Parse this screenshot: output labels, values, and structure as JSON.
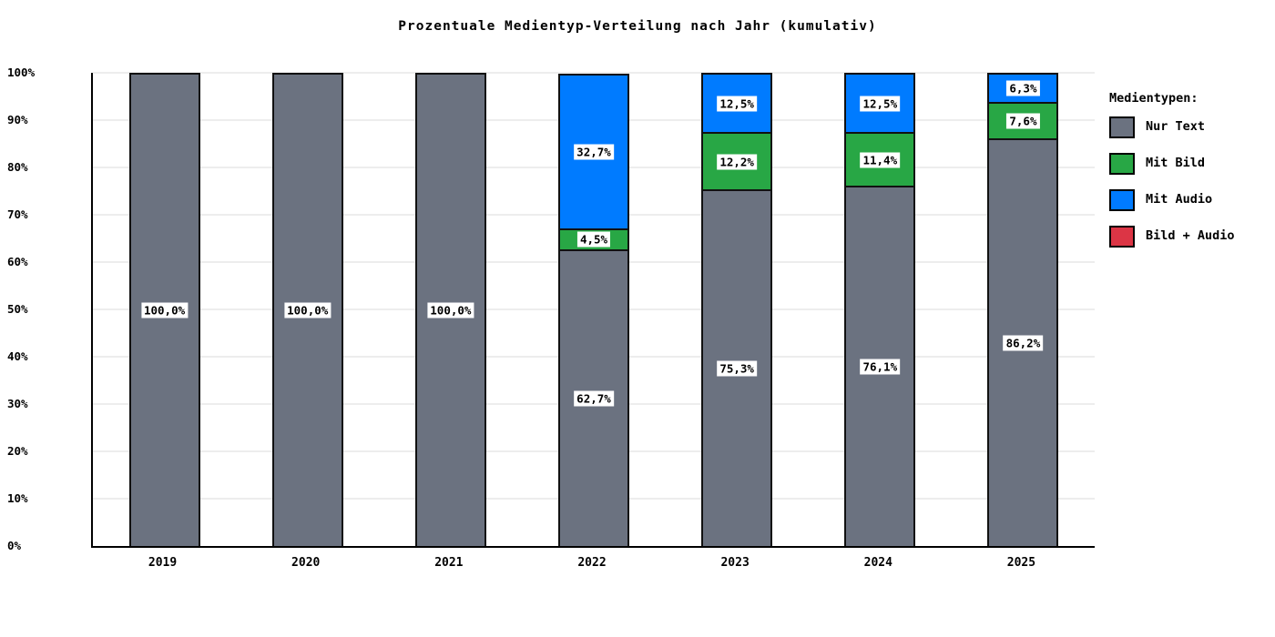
{
  "title": "Prozentuale Medientyp-Verteilung nach Jahr (kumulativ)",
  "chart_data": {
    "type": "bar",
    "stacked": true,
    "title": "Prozentuale Medientyp-Verteilung nach Jahr (kumulativ)",
    "categories": [
      "2019",
      "2020",
      "2021",
      "2022",
      "2023",
      "2024",
      "2025"
    ],
    "series": [
      {
        "name": "Nur Text",
        "color": "#6b7280",
        "values": [
          100.0,
          100.0,
          100.0,
          62.7,
          75.3,
          76.1,
          86.2
        ],
        "labels": [
          "100,0%",
          "100,0%",
          "100,0%",
          "62,7%",
          "75,3%",
          "76,1%",
          "86,2%"
        ]
      },
      {
        "name": "Mit Bild",
        "color": "#28a745",
        "values": [
          0,
          0,
          0,
          4.5,
          12.2,
          11.4,
          7.6
        ],
        "labels": [
          "",
          "",
          "",
          "4,5%",
          "12,2%",
          "11,4%",
          "7,6%"
        ]
      },
      {
        "name": "Mit Audio",
        "color": "#007bff",
        "values": [
          0,
          0,
          0,
          32.7,
          12.5,
          12.5,
          6.3
        ],
        "labels": [
          "",
          "",
          "",
          "32,7%",
          "12,5%",
          "12,5%",
          "6,3%"
        ]
      },
      {
        "name": "Bild + Audio",
        "color": "#dc3545",
        "values": [
          0,
          0,
          0,
          0,
          0,
          0,
          0
        ],
        "labels": [
          "",
          "",
          "",
          "",
          "",
          "",
          ""
        ]
      }
    ],
    "xlabel": "",
    "ylabel": "",
    "ylim": [
      0,
      100
    ],
    "ytick_labels": [
      "0%",
      "10%",
      "20%",
      "30%",
      "40%",
      "50%",
      "60%",
      "70%",
      "80%",
      "90%",
      "100%"
    ],
    "grid": true,
    "legend_position": "right"
  },
  "legend": {
    "title": "Medientypen:",
    "items": [
      {
        "label": "Nur Text",
        "color": "#6b7280"
      },
      {
        "label": "Mit Bild",
        "color": "#28a745"
      },
      {
        "label": "Mit Audio",
        "color": "#007bff"
      },
      {
        "label": "Bild + Audio",
        "color": "#dc3545"
      }
    ]
  }
}
